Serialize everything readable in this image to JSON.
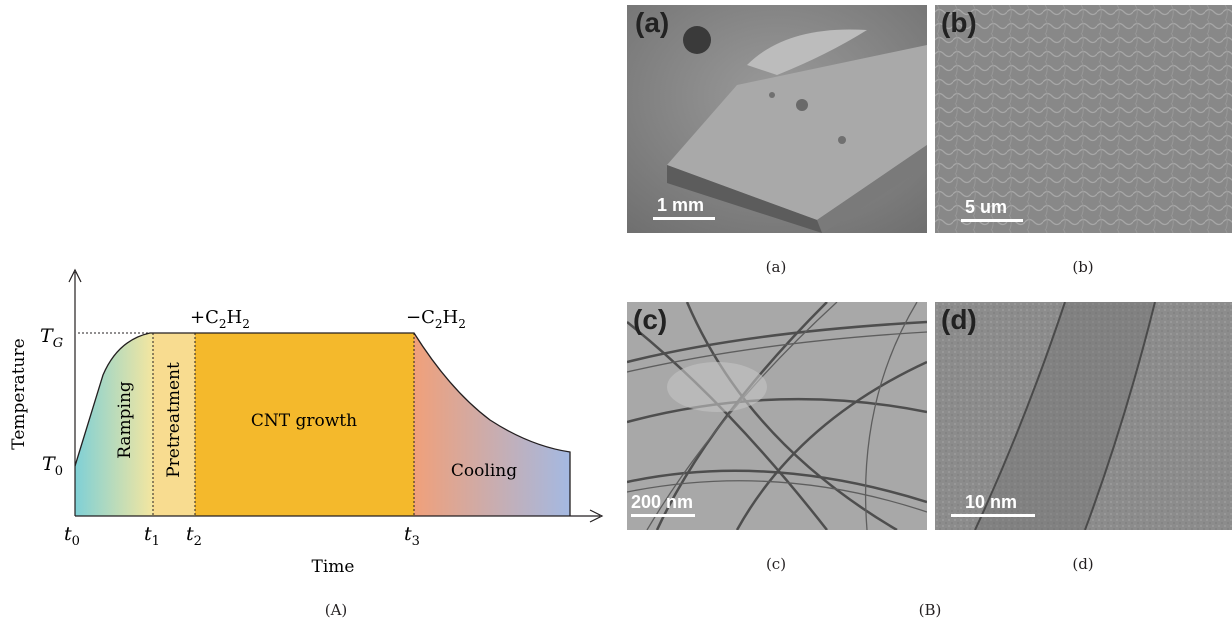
{
  "diagram": {
    "y_axis_label": "Temperature",
    "x_axis_label": "Time",
    "tg_label": "T",
    "tg_sub": "G",
    "t0_label": "T",
    "t0_sub": "0",
    "x_ticks": [
      {
        "main": "t",
        "sub": "0"
      },
      {
        "main": "t",
        "sub": "1"
      },
      {
        "main": "t",
        "sub": "2"
      },
      {
        "main": "t",
        "sub": "3"
      }
    ],
    "add_gas": {
      "sign": "+",
      "c": "C",
      "c_sub": "2",
      "h": "H",
      "h_sub": "2"
    },
    "remove_gas": {
      "sign": "−",
      "c": "C",
      "c_sub": "2",
      "h": "H",
      "h_sub": "2"
    },
    "phases": {
      "ramping": "Ramping",
      "pretreatment": "Pretreatment",
      "growth": "CNT growth",
      "cooling": "Cooling"
    },
    "colors": {
      "growth": "#f4b92c",
      "pretreatment": "#f8dc90",
      "ramping_start": "#7fd0d6",
      "ramping_end": "#f4e6a0",
      "cooling_start": "#f0a07a",
      "cooling_end": "#a4b9e2"
    }
  },
  "panel_A_caption": "(A)",
  "panel_B_caption": "(B)",
  "micrographs": [
    {
      "id": "a",
      "label": "(a)",
      "scale": "1 mm",
      "caption": "(a)"
    },
    {
      "id": "b",
      "label": "(b)",
      "scale": "5 um",
      "caption": "(b)"
    },
    {
      "id": "c",
      "label": "(c)",
      "scale": "200 nm",
      "caption": "(c)"
    },
    {
      "id": "d",
      "label": "(d)",
      "scale": "10 nm",
      "caption": "(d)"
    }
  ]
}
